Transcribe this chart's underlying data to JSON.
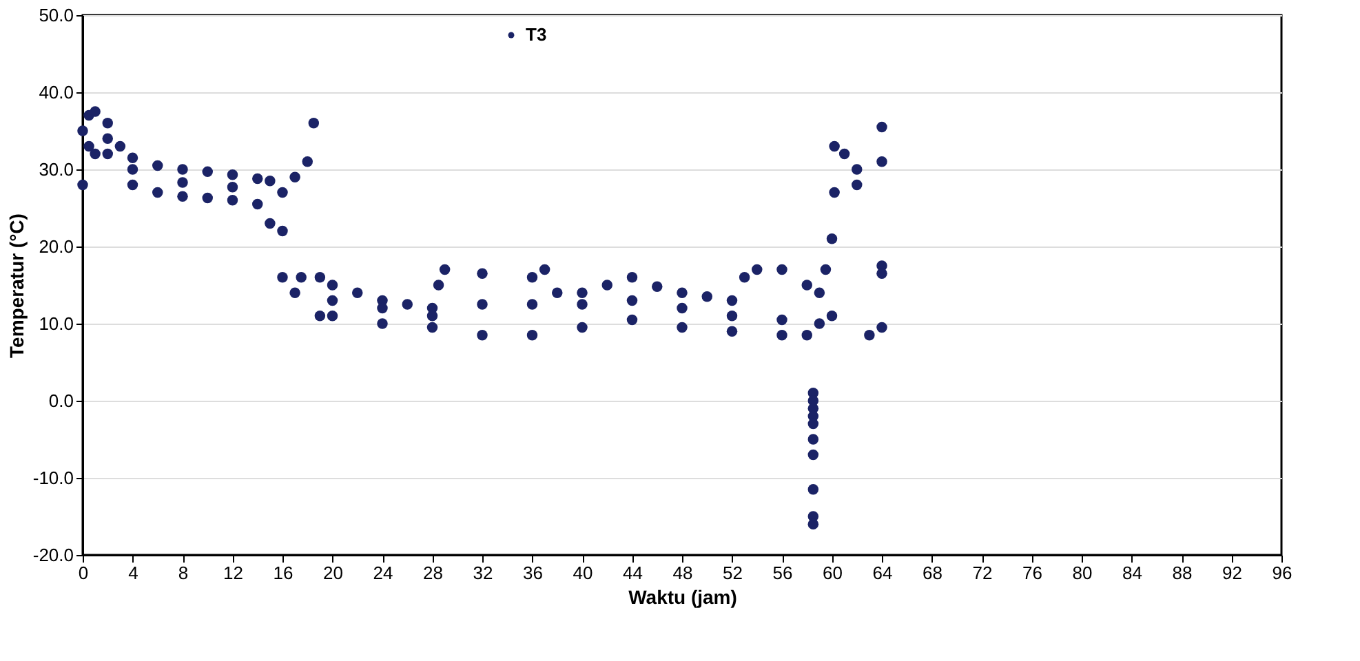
{
  "chart_data": {
    "type": "scatter",
    "xlabel": "Waktu (jam)",
    "ylabel": "Temperatur (°C)",
    "xlim": [
      0,
      96
    ],
    "xticks": [
      0,
      4,
      8,
      12,
      16,
      20,
      24,
      28,
      32,
      36,
      40,
      44,
      48,
      52,
      56,
      60,
      64,
      68,
      72,
      76,
      80,
      84,
      88,
      92,
      96
    ],
    "ylim": [
      -20,
      50
    ],
    "yticks": [
      {
        "value": -20,
        "label": "-20.0"
      },
      {
        "value": -10,
        "label": "-10.0"
      },
      {
        "value": 0,
        "label": "0.0"
      },
      {
        "value": 10,
        "label": "10.0"
      },
      {
        "value": 20,
        "label": "20.0"
      },
      {
        "value": 30,
        "label": "30.0"
      },
      {
        "value": 40,
        "label": "40.0"
      },
      {
        "value": 50,
        "label": "50.0"
      }
    ],
    "grid": "y",
    "legend": "top",
    "marker": "circle",
    "series": [
      {
        "name": "T3",
        "color": "#1b2366",
        "x": [
          0,
          0.5,
          1,
          2,
          3,
          4,
          6,
          8,
          10,
          12,
          14,
          15,
          16,
          17,
          18,
          18.5,
          19,
          20,
          22,
          24,
          26,
          28,
          28.5,
          29,
          32,
          36,
          37,
          38,
          40,
          42,
          44,
          46,
          48,
          50,
          52,
          53,
          54,
          56,
          58,
          59,
          59.5,
          60,
          60.2,
          61,
          62,
          64,
          64,
          64,
          64,
          64,
          0,
          1,
          2,
          4,
          6,
          8,
          10,
          12,
          14,
          15,
          16,
          17,
          17.5,
          19,
          20,
          24,
          28,
          32,
          36,
          40,
          44,
          48,
          52,
          56,
          58,
          59,
          60,
          60.2,
          62,
          0.5,
          2,
          4,
          8,
          12,
          16,
          20,
          24,
          28,
          32,
          36,
          40,
          44,
          48,
          52,
          56,
          58.5,
          58.5,
          58.5,
          58.5,
          58.5,
          58.5,
          58.5,
          58.5,
          58.5,
          58.5,
          63
        ],
        "values": [
          35,
          37,
          37.5,
          36,
          33,
          31.5,
          30.5,
          30,
          29.7,
          29.3,
          28.8,
          28.5,
          27,
          29,
          31,
          36,
          16,
          15,
          14,
          13,
          12.5,
          12,
          15,
          17,
          16.5,
          16,
          17,
          14,
          14,
          15,
          16,
          14.8,
          14,
          13.5,
          13,
          16,
          17,
          17,
          15,
          14,
          17,
          21,
          33,
          32,
          30,
          35.5,
          31,
          17.5,
          16.5,
          9.5,
          28,
          32,
          32,
          28,
          27,
          26.5,
          26.3,
          26,
          25.5,
          23,
          16,
          14,
          16,
          11,
          11,
          10,
          9.5,
          8.5,
          8.5,
          9.5,
          10.5,
          9.5,
          9,
          8.5,
          8.5,
          10,
          11,
          27,
          28,
          33,
          34,
          30,
          28.3,
          27.7,
          22,
          13,
          12,
          11,
          12.5,
          12.5,
          12.5,
          13,
          12,
          11,
          10.5,
          1,
          0,
          -1,
          -2,
          -3,
          -5,
          -7,
          -11.5,
          -15,
          -16,
          8.5
        ]
      }
    ]
  }
}
